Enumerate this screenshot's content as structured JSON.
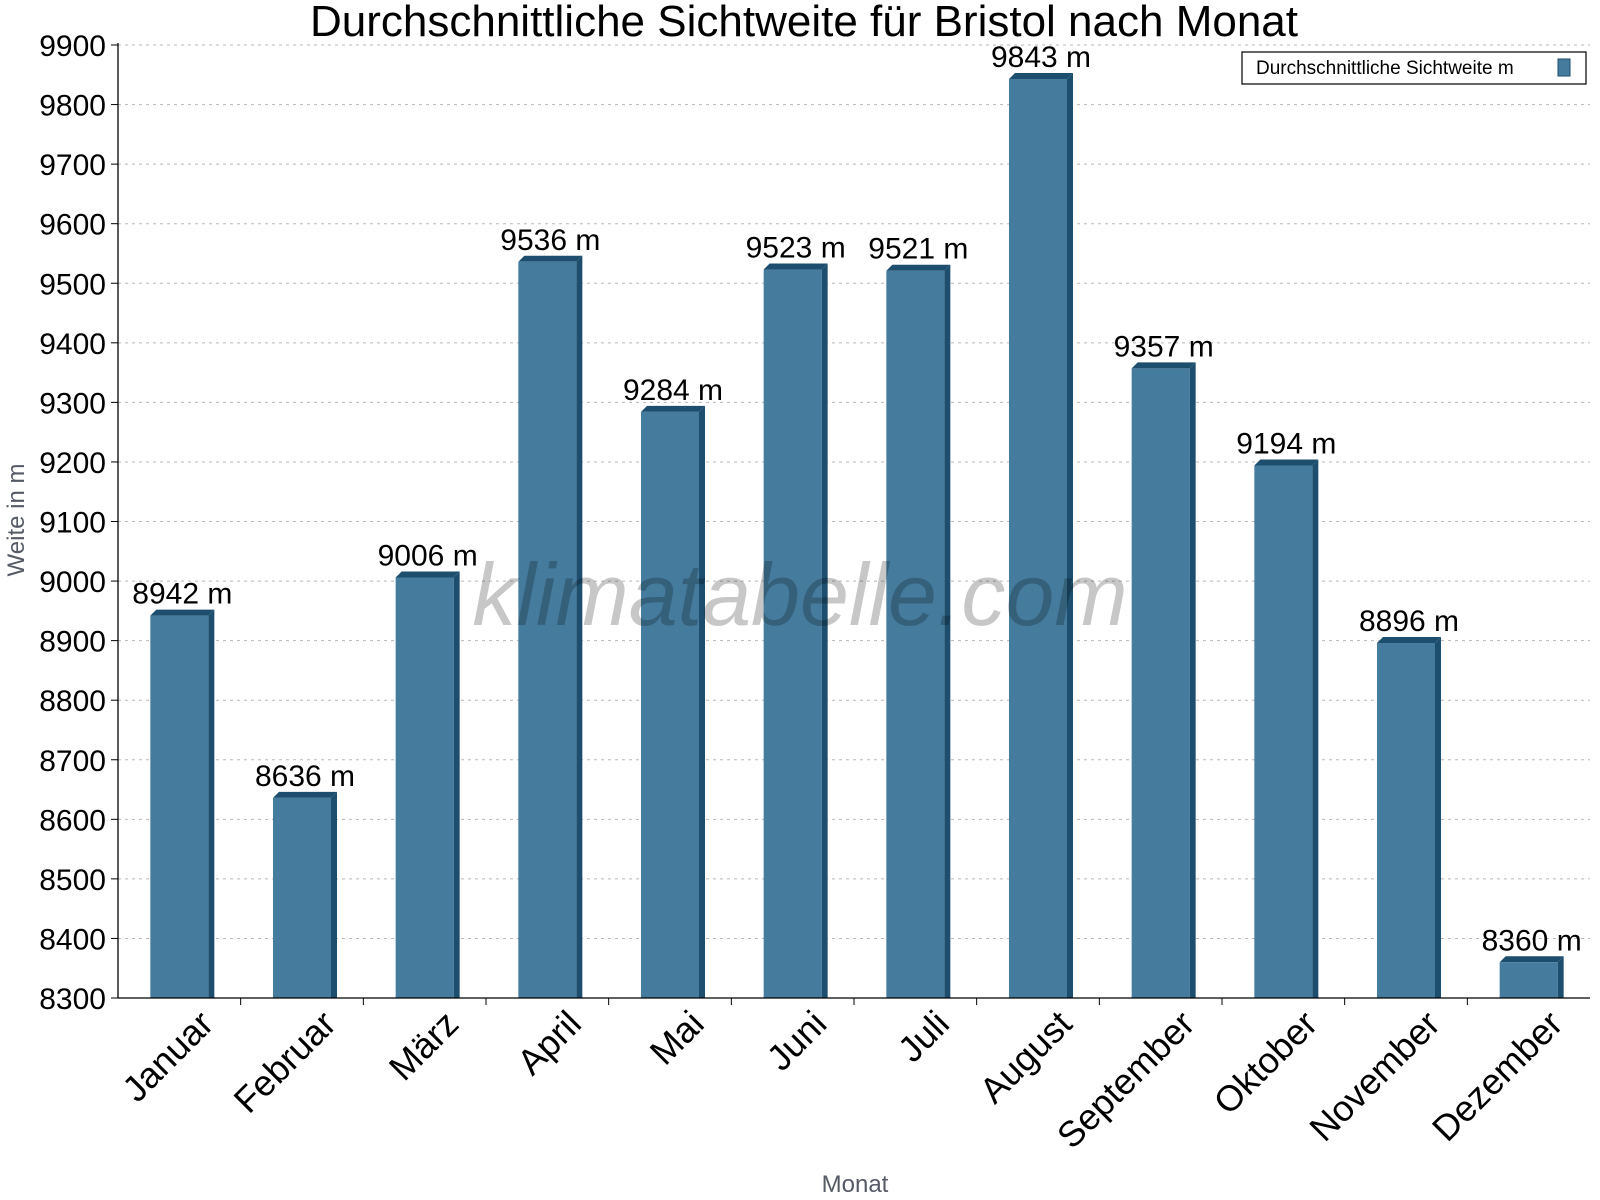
{
  "chart_data": {
    "type": "bar",
    "title": "Durchschnittliche Sichtweite für Bristol nach Monat",
    "xlabel": "Monat",
    "ylabel": "Weite in m",
    "categories": [
      "Januar",
      "Februar",
      "März",
      "April",
      "Mai",
      "Juni",
      "Juli",
      "August",
      "September",
      "Oktober",
      "November",
      "Dezember"
    ],
    "series": [
      {
        "name": "Durchschnittliche Sichtweite m",
        "values": [
          8942,
          8636,
          9006,
          9536,
          9284,
          9523,
          9521,
          9843,
          9357,
          9194,
          8896,
          8360
        ],
        "color": "#457b9d",
        "side_color": "#1d4e6e"
      }
    ],
    "data_labels": [
      "8942 m",
      "8636 m",
      "9006 m",
      "9536 m",
      "9284 m",
      "9523 m",
      "9521 m",
      "9843 m",
      "9357 m",
      "9194 m",
      "8896 m",
      "8360 m"
    ],
    "ylim": [
      8300,
      9900
    ],
    "yticks": [
      8300,
      8400,
      8500,
      8600,
      8700,
      8800,
      8900,
      9000,
      9100,
      9200,
      9300,
      9400,
      9500,
      9600,
      9700,
      9800,
      9900
    ],
    "grid": true,
    "legend_position": "top-right",
    "watermark": "klimatabelle.com"
  }
}
